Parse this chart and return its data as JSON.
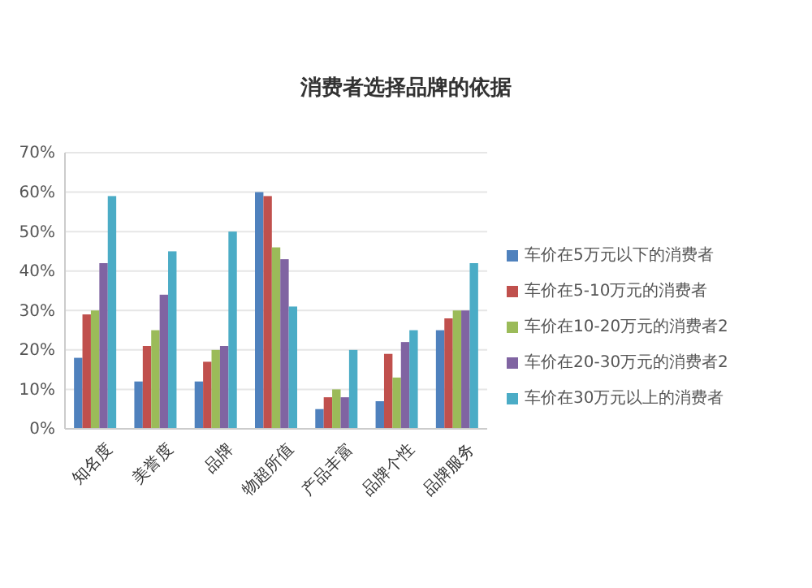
{
  "chart_data": {
    "type": "bar",
    "title": "消费者选择品牌的依据",
    "categories": [
      "知名度",
      "美誉度",
      "品牌",
      "物超所值",
      "产品丰富",
      "品牌个性",
      "品牌服务"
    ],
    "series": [
      {
        "name": "车价在5万元以下的消费者",
        "color": "#4f81bd",
        "values": [
          18,
          12,
          12,
          60,
          5,
          7,
          25
        ]
      },
      {
        "name": "车价在5-10万元的消费者",
        "color": "#c0504d",
        "values": [
          29,
          21,
          17,
          59,
          8,
          19,
          28
        ]
      },
      {
        "name": "车价在10-20万元的消费者2",
        "color": "#9bbb59",
        "values": [
          30,
          25,
          20,
          46,
          10,
          13,
          30
        ]
      },
      {
        "name": "车价在20-30万元的消费者2",
        "color": "#8064a2",
        "values": [
          42,
          34,
          21,
          43,
          8,
          22,
          30
        ]
      },
      {
        "name": "车价在30万元以上的消费者",
        "color": "#4bacc6",
        "values": [
          59,
          45,
          50,
          31,
          20,
          25,
          42
        ]
      }
    ],
    "ylim": [
      0,
      70
    ],
    "yticks": [
      {
        "value": 0,
        "label": "0%"
      },
      {
        "value": 10,
        "label": "10%"
      },
      {
        "value": 20,
        "label": "20%"
      },
      {
        "value": 30,
        "label": "30%"
      },
      {
        "value": 40,
        "label": "40%"
      },
      {
        "value": 50,
        "label": "50%"
      },
      {
        "value": 60,
        "label": "60%"
      },
      {
        "value": 70,
        "label": "70%"
      }
    ],
    "grid": "y",
    "legend": "right"
  }
}
